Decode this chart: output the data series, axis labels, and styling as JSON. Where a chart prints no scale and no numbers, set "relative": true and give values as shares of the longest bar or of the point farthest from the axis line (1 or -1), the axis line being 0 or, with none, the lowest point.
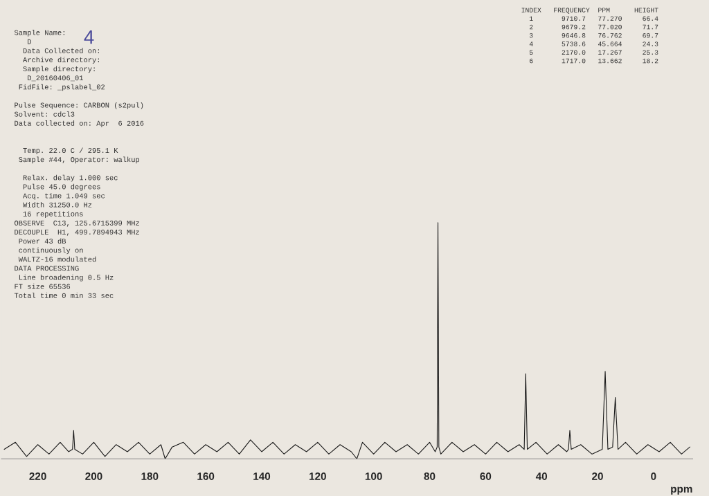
{
  "chart_data": {
    "type": "line",
    "relative": true,
    "xlabel": "ppm",
    "xlim": [
      233,
      -14
    ],
    "xticks": [
      220,
      200,
      180,
      160,
      140,
      120,
      100,
      80,
      60,
      40,
      20,
      0
    ],
    "tick_labels": "x",
    "grid": false,
    "marker": "none",
    "line_style": "solid",
    "series": [
      {
        "color": "#1a1a1a",
        "x": [
          232,
          228,
          224,
          220,
          216,
          212,
          209,
          207.6,
          207.2,
          206.8,
          204,
          200,
          196,
          192,
          188,
          184,
          180,
          176,
          174.5,
          172,
          168,
          164,
          160,
          156,
          152,
          148,
          144,
          140,
          136,
          132,
          128,
          124,
          120,
          116,
          112,
          108,
          106,
          104,
          100,
          96,
          92,
          88,
          84,
          80,
          78,
          77.3,
          77.02,
          76.7,
          76,
          72,
          68,
          64,
          60,
          56,
          52,
          48,
          46.2,
          45.66,
          45.1,
          42,
          38,
          34,
          31,
          30.4,
          29.9,
          29.4,
          26,
          22,
          18.3,
          17.27,
          16.3,
          14.6,
          13.66,
          12.7,
          10,
          6,
          2,
          -2,
          -6,
          -10,
          -13
        ],
        "values": [
          0.04,
          0.07,
          0.01,
          0.06,
          0.02,
          0.07,
          0.03,
          0.04,
          0.12,
          0.04,
          0.02,
          0.07,
          0.01,
          0.06,
          0.03,
          0.07,
          0.02,
          0.06,
          0.0,
          0.05,
          0.07,
          0.02,
          0.06,
          0.03,
          0.07,
          0.02,
          0.08,
          0.03,
          0.07,
          0.02,
          0.06,
          0.03,
          0.07,
          0.02,
          0.06,
          0.03,
          0.0,
          0.07,
          0.02,
          0.07,
          0.03,
          0.06,
          0.02,
          0.07,
          0.03,
          0.05,
          1.0,
          0.05,
          0.02,
          0.07,
          0.03,
          0.06,
          0.02,
          0.07,
          0.03,
          0.06,
          0.04,
          0.36,
          0.04,
          0.07,
          0.02,
          0.06,
          0.03,
          0.04,
          0.12,
          0.04,
          0.06,
          0.02,
          0.04,
          0.37,
          0.04,
          0.05,
          0.26,
          0.04,
          0.07,
          0.02,
          0.06,
          0.03,
          0.07,
          0.02,
          0.05
        ]
      }
    ],
    "annotations": [
      "Sample Name:\n   D\n  Data Collected on:\n  Archive directory:\n  Sample directory:\n   D_20160406_01\n FidFile: _pslabel_02\n\nPulse Sequence: CARBON (s2pul)\nSolvent: cdcl3\nData collected on: Apr  6 2016\n\n\n  Temp. 22.0 C / 295.1 K\n Sample #44, Operator: walkup\n\n  Relax. delay 1.000 sec\n  Pulse 45.0 degrees\n  Acq. time 1.049 sec\n  Width 31250.0 Hz\n  16 repetitions\nOBSERVE  C13, 125.6715399 MHz\nDECOUPLE  H1, 499.7894943 MHz\n Power 43 dB\n continuously on\n WALTZ-16 modulated\nDATA PROCESSING\n Line broadening 0.5 Hz\nFT size 65536\nTotal time 0 min 33 sec",
      "4",
      "INDEX   FREQUENCY  PPM      HEIGHT\n  1       9710.7   77.270     66.4\n  2       9679.2   77.020     71.7\n  3       9646.8   76.762     69.7\n  4       5738.6   45.664     24.3\n  5       2170.0   17.267     25.3\n  6       1717.0   13.662     18.2"
    ]
  }
}
